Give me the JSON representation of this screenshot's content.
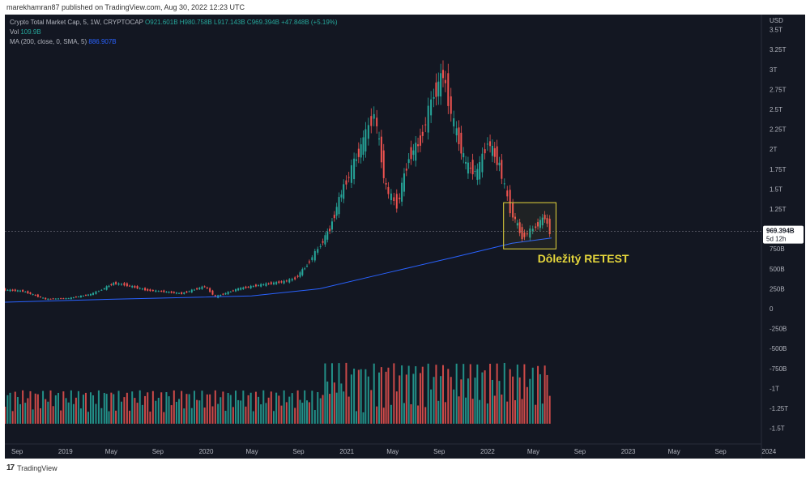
{
  "header": {
    "publisher_line": "marekhamran87 published on TradingView.com, Aug 30, 2022 12:23 UTC"
  },
  "legend": {
    "symbol": "Crypto Total Market Cap, 5, 1W, CRYPTOCAP",
    "ohlc": "O921.601B  H980.758B  L917.143B  C969.394B  +47.848B (+5.19%)",
    "vol_label": "Vol",
    "vol_value": "109.9B",
    "ma_label": "MA (200, close, 0, SMA, 5)",
    "ma_value": "886.907B"
  },
  "price_axis": {
    "currency": "USD",
    "ticks": [
      "3.5T",
      "3.25T",
      "3T",
      "2.75T",
      "2.5T",
      "2.25T",
      "2T",
      "1.75T",
      "1.5T",
      "1.25T",
      "750B",
      "500B",
      "250B",
      "0",
      "-250B",
      "-500B",
      "-750B",
      "-1T",
      "-1.25T",
      "-1.5T"
    ],
    "last_price": "969.394B",
    "countdown": "5d 12h"
  },
  "time_axis": {
    "labels": [
      "Sep",
      "2019",
      "May",
      "Sep",
      "2020",
      "May",
      "Sep",
      "2021",
      "May",
      "Sep",
      "2022",
      "May",
      "Sep",
      "2023",
      "May",
      "Sep",
      "2024"
    ]
  },
  "annotation": {
    "text": "Dôležitý RETEST"
  },
  "footer": {
    "brand": "TradingView"
  },
  "colors": {
    "background": "#131722",
    "up": "#26a69a",
    "down": "#ef5350",
    "ma": "#2962ff",
    "annotation": "#e6d73c",
    "price_tag": "#ffffff"
  },
  "chart_data": {
    "type": "candlestick",
    "title": "Crypto Total Market Cap, 5, 1W, CRYPTOCAP",
    "ylabel": "USD",
    "ylim": [
      -1.5,
      3.5
    ],
    "x_range": [
      "2018-09",
      "2024-03"
    ],
    "series": [
      {
        "name": "Crypto Total Market Cap",
        "points": [
          [
            "2018-08",
            0.24
          ],
          [
            "2018-10",
            0.22
          ],
          [
            "2018-12",
            0.12
          ],
          [
            "2019-02",
            0.13
          ],
          [
            "2019-04",
            0.18
          ],
          [
            "2019-05",
            0.24
          ],
          [
            "2019-06",
            0.32
          ],
          [
            "2019-07",
            0.3
          ],
          [
            "2019-09",
            0.23
          ],
          [
            "2019-10",
            0.22
          ],
          [
            "2019-12",
            0.19
          ],
          [
            "2020-02",
            0.28
          ],
          [
            "2020-03",
            0.15
          ],
          [
            "2020-05",
            0.25
          ],
          [
            "2020-07",
            0.3
          ],
          [
            "2020-09",
            0.34
          ],
          [
            "2020-10",
            0.38
          ],
          [
            "2020-11",
            0.55
          ],
          [
            "2020-12",
            0.75
          ],
          [
            "2021-01",
            1.0
          ],
          [
            "2021-02",
            1.45
          ],
          [
            "2021-03",
            1.75
          ],
          [
            "2021-04",
            2.1
          ],
          [
            "2021-05",
            2.45
          ],
          [
            "2021-06",
            1.5
          ],
          [
            "2021-07",
            1.3
          ],
          [
            "2021-08",
            1.9
          ],
          [
            "2021-09",
            2.1
          ],
          [
            "2021-10",
            2.6
          ],
          [
            "2021-11",
            2.95
          ],
          [
            "2021-12",
            2.3
          ],
          [
            "2022-01",
            1.8
          ],
          [
            "2022-02",
            1.7
          ],
          [
            "2022-03",
            2.1
          ],
          [
            "2022-04",
            1.8
          ],
          [
            "2022-05",
            1.25
          ],
          [
            "2022-06",
            0.9
          ],
          [
            "2022-07",
            1.0
          ],
          [
            "2022-08",
            1.15
          ],
          [
            "2022-08-29",
            0.97
          ]
        ]
      },
      {
        "name": "MA (200, close, 0, SMA, 5)",
        "points": [
          [
            "2018-08",
            0.08
          ],
          [
            "2019-06",
            0.12
          ],
          [
            "2020-06",
            0.16
          ],
          [
            "2020-12",
            0.25
          ],
          [
            "2021-06",
            0.45
          ],
          [
            "2021-12",
            0.65
          ],
          [
            "2022-05",
            0.82
          ],
          [
            "2022-08-29",
            0.887
          ]
        ]
      }
    ],
    "volume": {
      "name": "Vol",
      "last": "109.9B"
    },
    "annotations": [
      "Dôležitý RETEST"
    ]
  }
}
